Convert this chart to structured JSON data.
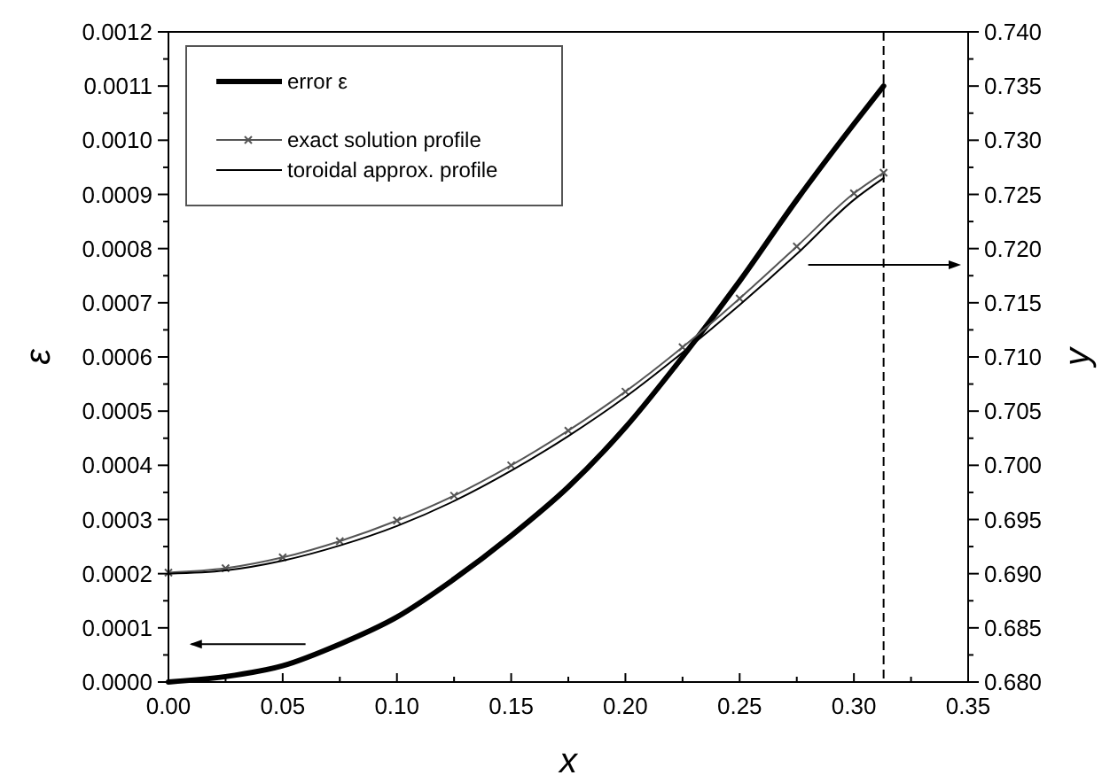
{
  "chart_data": {
    "type": "line",
    "xlabel": "x",
    "ylabel": "ε",
    "y2label": "y",
    "legend": "top left",
    "grid": false,
    "xlim": [
      0,
      0.35
    ],
    "ylim": [
      0,
      0.0012
    ],
    "y2lim": [
      0.68,
      0.74
    ],
    "xticks": [
      {
        "value": 0,
        "label": "0.00"
      },
      {
        "value": 0.025,
        "label": null
      },
      {
        "value": 0.05,
        "label": "0.05"
      },
      {
        "value": 0.075,
        "label": null
      },
      {
        "value": 0.1,
        "label": "0.10"
      },
      {
        "value": 0.125,
        "label": null
      },
      {
        "value": 0.15,
        "label": "0.15"
      },
      {
        "value": 0.175,
        "label": null
      },
      {
        "value": 0.2,
        "label": "0.20"
      },
      {
        "value": 0.225,
        "label": null
      },
      {
        "value": 0.25,
        "label": "0.25"
      },
      {
        "value": 0.275,
        "label": null
      },
      {
        "value": 0.3,
        "label": "0.30"
      },
      {
        "value": 0.325,
        "label": null
      },
      {
        "value": 0.35,
        "label": "0.35"
      }
    ],
    "yticks": [
      {
        "value": 0,
        "label": "0.0000"
      },
      {
        "value": 5e-05,
        "label": null
      },
      {
        "value": 0.0001,
        "label": "0.0001"
      },
      {
        "value": 0.00015,
        "label": null
      },
      {
        "value": 0.0002,
        "label": "0.0002"
      },
      {
        "value": 0.00025,
        "label": null
      },
      {
        "value": 0.0003,
        "label": "0.0003"
      },
      {
        "value": 0.00035,
        "label": null
      },
      {
        "value": 0.0004,
        "label": "0.0004"
      },
      {
        "value": 0.00045,
        "label": null
      },
      {
        "value": 0.0005,
        "label": "0.0005"
      },
      {
        "value": 0.00055,
        "label": null
      },
      {
        "value": 0.0006,
        "label": "0.0006"
      },
      {
        "value": 0.00065,
        "label": null
      },
      {
        "value": 0.0007,
        "label": "0.0007"
      },
      {
        "value": 0.00075,
        "label": null
      },
      {
        "value": 0.0008,
        "label": "0.0008"
      },
      {
        "value": 0.00085,
        "label": null
      },
      {
        "value": 0.0009,
        "label": "0.0009"
      },
      {
        "value": 0.00095,
        "label": null
      },
      {
        "value": 0.001,
        "label": "0.0010"
      },
      {
        "value": 0.00105,
        "label": null
      },
      {
        "value": 0.0011,
        "label": "0.0011"
      },
      {
        "value": 0.00115,
        "label": null
      },
      {
        "value": 0.0012,
        "label": "0.0012"
      }
    ],
    "y2ticks": [
      {
        "value": 0.68,
        "label": "0.680"
      },
      {
        "value": 0.6825,
        "label": null
      },
      {
        "value": 0.685,
        "label": "0.685"
      },
      {
        "value": 0.6875,
        "label": null
      },
      {
        "value": 0.69,
        "label": "0.690"
      },
      {
        "value": 0.6925,
        "label": null
      },
      {
        "value": 0.695,
        "label": "0.695"
      },
      {
        "value": 0.6975,
        "label": null
      },
      {
        "value": 0.7,
        "label": "0.700"
      },
      {
        "value": 0.7025,
        "label": null
      },
      {
        "value": 0.705,
        "label": "0.705"
      },
      {
        "value": 0.7075,
        "label": null
      },
      {
        "value": 0.71,
        "label": "0.710"
      },
      {
        "value": 0.7125,
        "label": null
      },
      {
        "value": 0.715,
        "label": "0.715"
      },
      {
        "value": 0.7175,
        "label": null
      },
      {
        "value": 0.72,
        "label": "0.720"
      },
      {
        "value": 0.7225,
        "label": null
      },
      {
        "value": 0.725,
        "label": "0.725"
      },
      {
        "value": 0.7275,
        "label": null
      },
      {
        "value": 0.73,
        "label": "0.730"
      },
      {
        "value": 0.7325,
        "label": null
      },
      {
        "value": 0.735,
        "label": "0.735"
      },
      {
        "value": 0.7375,
        "label": null
      },
      {
        "value": 0.74,
        "label": "0.740"
      }
    ],
    "ref_lines": [
      {
        "axis": "x",
        "value": 0.313,
        "color": "#000000",
        "line_style": "dashed"
      }
    ],
    "series": [
      {
        "name": "error ε",
        "color": "#000000",
        "marker": "none",
        "line_style": "solid",
        "x": [
          0,
          0.025,
          0.05,
          0.075,
          0.1,
          0.125,
          0.15,
          0.175,
          0.2,
          0.225,
          0.25,
          0.275,
          0.3,
          0.313
        ],
        "values": [
          0,
          1e-05,
          3e-05,
          7e-05,
          0.00012,
          0.00019,
          0.00027,
          0.00036,
          0.00047,
          0.0006,
          0.00074,
          0.00089,
          0.00103,
          0.0011
        ]
      },
      {
        "name": "exact solution profile",
        "color": "#555555",
        "marker": "cross",
        "line_style": "solid",
        "axis": "y2",
        "x": [
          0,
          0.025,
          0.05,
          0.075,
          0.1,
          0.125,
          0.15,
          0.175,
          0.2,
          0.225,
          0.25,
          0.275,
          0.3,
          0.313
        ],
        "values": [
          0.6901,
          0.6905,
          0.6915,
          0.693,
          0.6949,
          0.6972,
          0.7,
          0.7032,
          0.7068,
          0.7109,
          0.7154,
          0.7202,
          0.7251,
          0.727
        ]
      },
      {
        "name": "toroidal approx. profile",
        "color": "#000000",
        "marker": "none",
        "line_style": "solid",
        "axis": "y2",
        "x": [
          0,
          0.025,
          0.05,
          0.075,
          0.1,
          0.125,
          0.15,
          0.175,
          0.2,
          0.225,
          0.25,
          0.275,
          0.3,
          0.313
        ],
        "values": [
          0.69,
          0.6903,
          0.6912,
          0.6926,
          0.6944,
          0.6967,
          0.6995,
          0.7027,
          0.7063,
          0.7104,
          0.7148,
          0.7195,
          0.7245,
          0.7265
        ]
      }
    ]
  }
}
